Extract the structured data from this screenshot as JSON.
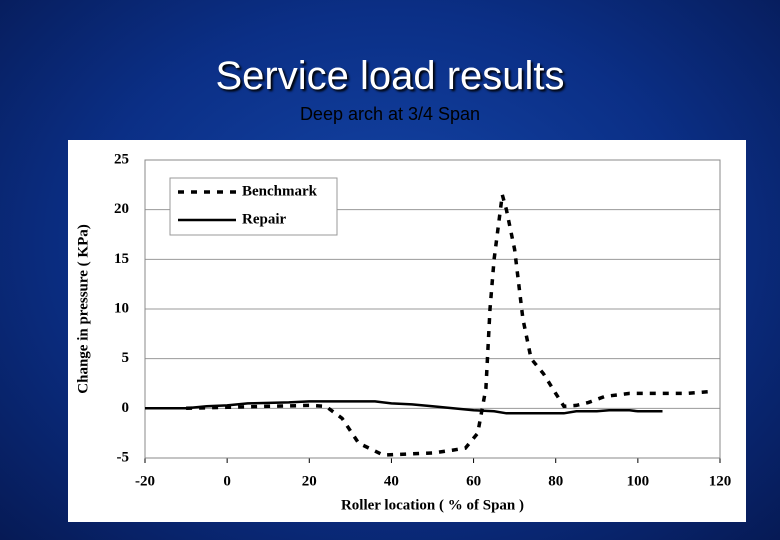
{
  "title": "Service load results",
  "subtitle": "Deep arch at 3/4  Span",
  "chart_data": {
    "type": "line",
    "x_label": "Roller location ( % of Span )",
    "y_label": "Change in pressure ( KPa)",
    "xlim": [
      -20,
      120
    ],
    "xticks": [
      -20,
      0,
      20,
      40,
      60,
      80,
      100,
      120
    ],
    "ylim": [
      -5,
      25
    ],
    "yticks": [
      -5,
      0,
      5,
      10,
      15,
      20,
      25
    ],
    "grid": true,
    "legend": "upper-left",
    "series": [
      {
        "name": "Benchmark",
        "color": "#000000",
        "dashed": true,
        "x": [
          -10,
          0,
          10,
          20,
          24,
          28,
          32,
          38,
          44,
          50,
          55,
          58,
          61,
          63,
          64,
          65,
          67,
          68,
          70,
          72,
          74,
          77,
          80,
          82,
          85,
          88,
          92,
          98,
          105,
          112,
          118
        ],
        "values": [
          0,
          0.1,
          0.2,
          0.3,
          0.2,
          -1,
          -3.5,
          -4.7,
          -4.6,
          -4.5,
          -4.2,
          -4,
          -2.5,
          2,
          10,
          15,
          21.5,
          20,
          16,
          9,
          5,
          3.5,
          1.5,
          0.2,
          0.3,
          0.6,
          1.2,
          1.5,
          1.5,
          1.5,
          1.7
        ]
      },
      {
        "name": "Repair",
        "color": "#000000",
        "dashed": false,
        "x": [
          -20,
          -10,
          -5,
          0,
          5,
          15,
          20,
          30,
          36,
          40,
          45,
          50,
          55,
          60,
          65,
          68,
          75,
          82,
          85,
          90,
          93,
          98,
          100,
          106
        ],
        "values": [
          0,
          0,
          0.2,
          0.3,
          0.5,
          0.6,
          0.7,
          0.7,
          0.7,
          0.5,
          0.4,
          0.2,
          0,
          -0.2,
          -0.3,
          -0.5,
          -0.5,
          -0.5,
          -0.3,
          -0.3,
          -0.2,
          -0.2,
          -0.3,
          -0.3
        ]
      }
    ]
  }
}
